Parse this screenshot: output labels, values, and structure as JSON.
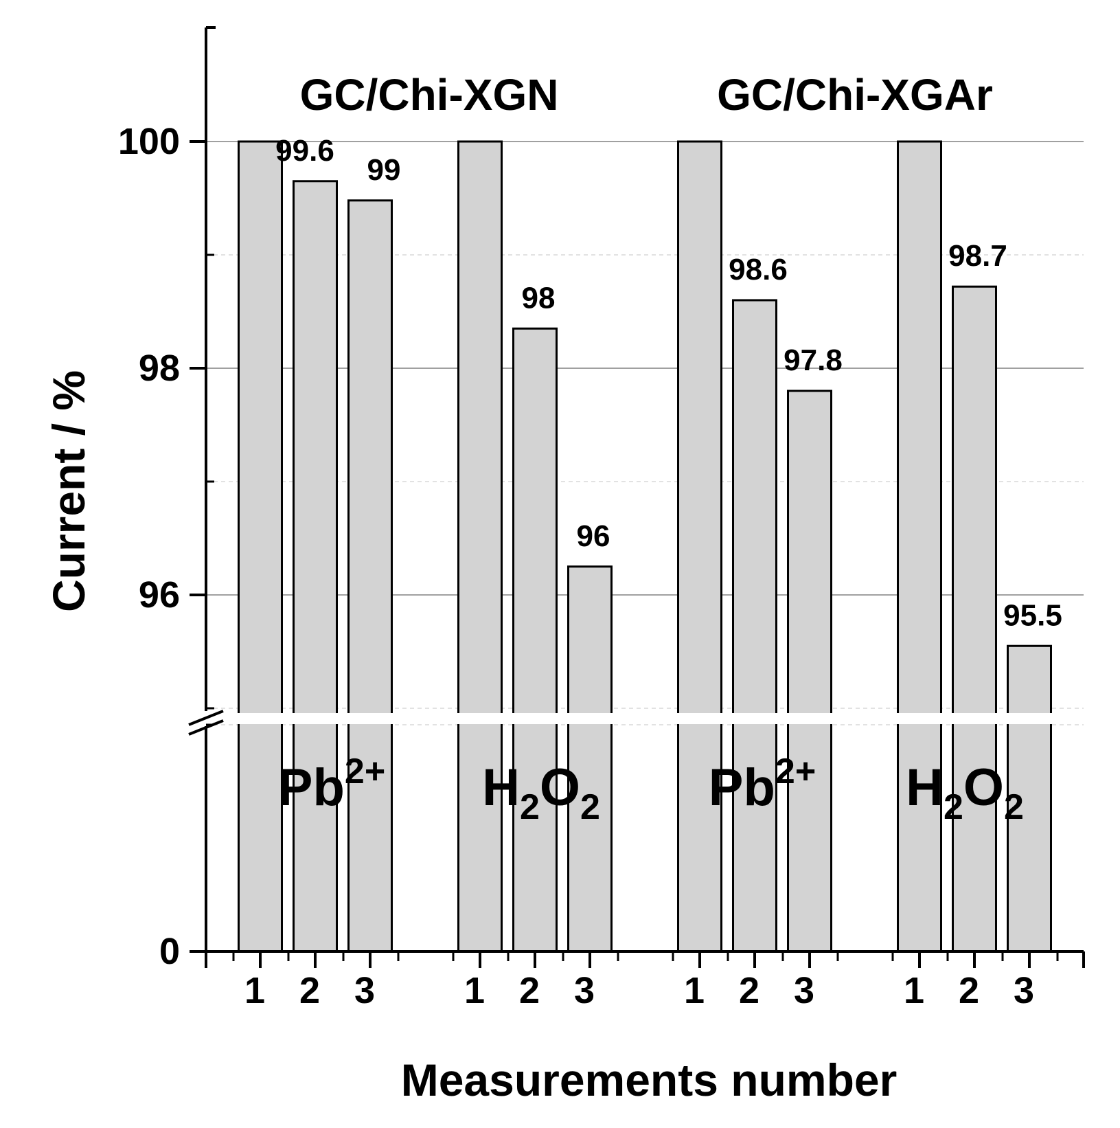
{
  "chart_data": {
    "type": "bar",
    "xlabel": "Measurements number",
    "ylabel": "Current / %",
    "axis_break": true,
    "y_ticks": [
      "0",
      "96",
      "98",
      "100"
    ],
    "group_titles": [
      "GC/Chi-XGN",
      "GC/Chi-XGAr"
    ],
    "analytes": [
      {
        "main": "Pb",
        "sup": "2+"
      },
      {
        "main": "H",
        "sub1": "2",
        "main2": "O",
        "sub2": "2"
      },
      {
        "main": "Pb",
        "sup": "2+"
      },
      {
        "main": "H",
        "sub1": "2",
        "main2": "O",
        "sub2": "2"
      }
    ],
    "categories": [
      "1",
      "2",
      "3",
      "1",
      "2",
      "3",
      "1",
      "2",
      "3",
      "1",
      "2",
      "3"
    ],
    "values": [
      100,
      99.65,
      99.48,
      100,
      98.35,
      96.25,
      100,
      98.6,
      97.8,
      100,
      98.72,
      95.55
    ],
    "labels": [
      "",
      "99.6",
      "99",
      "",
      "98",
      "96",
      "",
      "98.6",
      "97.8",
      "",
      "98.7",
      "95.5"
    ],
    "colors": {
      "bar_fill": "#d3d3d3",
      "bar_stroke": "#000000",
      "grid_major": "#a0a0a0",
      "grid_minor": "#d8d8d8"
    }
  }
}
